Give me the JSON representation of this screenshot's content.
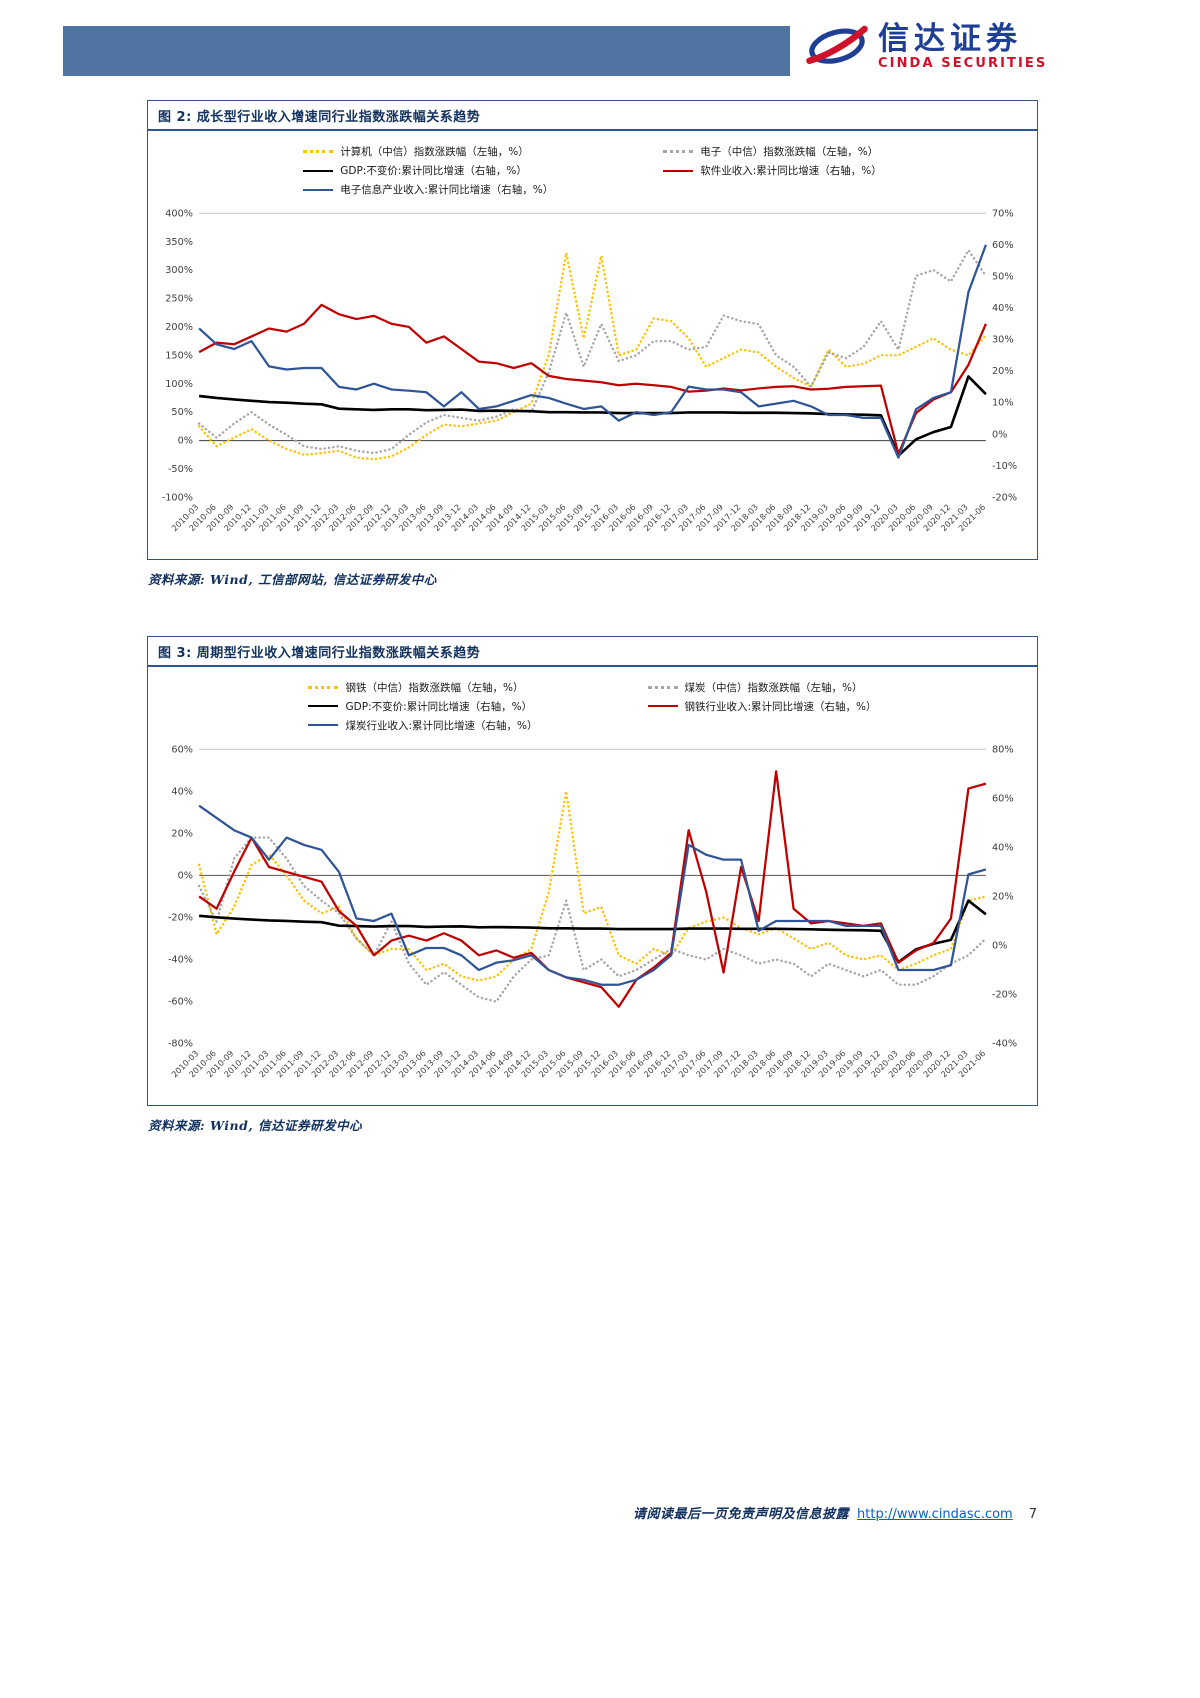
{
  "page": {
    "header": {
      "brand_cn": "信达证券",
      "brand_en": "CINDA SECURITIES"
    },
    "footer": {
      "disclaimer": "请阅读最后一页免责声明及信息披露",
      "url": "http://www.cindasc.com",
      "page_number": "7"
    },
    "colors": {
      "header_band": "#4f74a1",
      "title_navy": "#12315e",
      "box_border": "#2f5496",
      "logo_blue": "#1e3f94",
      "logo_red": "#d0112b",
      "link_blue": "#0563c1"
    }
  },
  "figure2": {
    "title": "图 2: 成长型行业收入增速同行业指数涨跌幅关系趋势",
    "source": "资料来源: Wind, 工信部网站, 信达证券研发中心"
  },
  "figure3": {
    "title": "图 3: 周期型行业收入增速同行业指数涨跌幅关系趋势",
    "source": "资料来源: Wind, 信达证券研发中心"
  },
  "chart_data": [
    {
      "type": "line",
      "title": "图 2: 成长型行业收入增速同行业指数涨跌幅关系趋势",
      "legend_position": "top",
      "grid": "top-and-zero-line-only",
      "left_axis": {
        "min": -100,
        "max": 400,
        "step": 50,
        "unit": "%"
      },
      "right_axis": {
        "min": -20,
        "max": 70,
        "step": 10,
        "unit": "%"
      },
      "categories": [
        "2010-03",
        "2010-06",
        "2010-09",
        "2010-12",
        "2011-03",
        "2011-06",
        "2011-09",
        "2011-12",
        "2012-03",
        "2012-06",
        "2012-09",
        "2012-12",
        "2013-03",
        "2013-06",
        "2013-09",
        "2013-12",
        "2014-03",
        "2014-06",
        "2014-09",
        "2014-12",
        "2015-03",
        "2015-06",
        "2015-09",
        "2015-12",
        "2016-03",
        "2016-06",
        "2016-09",
        "2016-12",
        "2017-03",
        "2017-06",
        "2017-09",
        "2017-12",
        "2018-03",
        "2018-06",
        "2018-09",
        "2018-12",
        "2019-03",
        "2019-06",
        "2019-09",
        "2019-12",
        "2020-03",
        "2020-06",
        "2020-09",
        "2020-12",
        "2021-03",
        "2021-06"
      ],
      "series": [
        {
          "name": "计算机（中信）指数涨跌幅（左轴，%）",
          "axis": "left",
          "color": "#FFC000",
          "style": "dotted",
          "values": [
            25,
            -10,
            5,
            20,
            0,
            -15,
            -25,
            -22,
            -18,
            -30,
            -33,
            -28,
            -12,
            10,
            28,
            25,
            30,
            35,
            50,
            65,
            150,
            330,
            180,
            325,
            150,
            160,
            215,
            210,
            180,
            130,
            145,
            160,
            155,
            130,
            110,
            95,
            160,
            130,
            135,
            150,
            150,
            165,
            180,
            160,
            150,
            185
          ]
        },
        {
          "name": "电子（中信）指数涨跌幅（左轴，%）",
          "axis": "left",
          "color": "#A6A6A6",
          "style": "dotted",
          "values": [
            30,
            5,
            30,
            50,
            28,
            10,
            -10,
            -15,
            -10,
            -18,
            -22,
            -15,
            10,
            32,
            45,
            40,
            35,
            42,
            55,
            50,
            120,
            225,
            130,
            205,
            140,
            150,
            175,
            175,
            160,
            165,
            220,
            210,
            205,
            150,
            130,
            95,
            155,
            145,
            165,
            210,
            160,
            290,
            300,
            280,
            335,
            290
          ]
        },
        {
          "name": "GDP:不变价:累计同比增速（右轴，%）",
          "axis": "right",
          "color": "#000000",
          "style": "solid",
          "width": 2.6,
          "values": [
            12.1,
            11.5,
            11,
            10.6,
            10.2,
            10,
            9.7,
            9.5,
            8.1,
            7.9,
            7.7,
            7.9,
            7.9,
            7.6,
            7.7,
            7.8,
            7.4,
            7.5,
            7.4,
            7.3,
            7,
            7,
            6.9,
            6.9,
            6.7,
            6.7,
            6.7,
            6.7,
            6.9,
            6.9,
            6.9,
            6.8,
            6.8,
            6.8,
            6.7,
            6.6,
            6.4,
            6.3,
            6.2,
            6,
            -6.8,
            -1.6,
            0.7,
            2.3,
            18.3,
            12.7
          ]
        },
        {
          "name": "软件业收入:累计同比增速（右轴，%）",
          "axis": "right",
          "color": "#C00000",
          "style": "solid",
          "values": [
            26,
            29,
            28.5,
            31,
            33.5,
            32.5,
            35,
            41,
            38,
            36.5,
            37.5,
            35,
            34,
            29,
            31,
            27,
            23,
            22.5,
            21,
            22.5,
            18.5,
            17.5,
            17,
            16.5,
            15.5,
            16,
            15.5,
            15,
            13.5,
            13.8,
            14.5,
            13.9,
            14.5,
            15,
            15.2,
            14.2,
            14.4,
            15,
            15.2,
            15.4,
            -6.2,
            6.7,
            11,
            13.3,
            22,
            35
          ]
        },
        {
          "name": "电子信息产业收入:累计同比增速（右轴，%）",
          "axis": "right",
          "color": "#2F5597",
          "style": "solid",
          "values": [
            33.5,
            28.5,
            27,
            29.5,
            21.5,
            20.5,
            21,
            21,
            15,
            14.2,
            16,
            14.2,
            13.8,
            13.3,
            8.8,
            13.3,
            8,
            8.8,
            10.6,
            12.4,
            11.5,
            9.7,
            8,
            8.8,
            4.3,
            7,
            6.1,
            7,
            15.1,
            14.2,
            14.2,
            13.3,
            8.8,
            9.7,
            10.6,
            8.8,
            6.1,
            6.1,
            5.2,
            5.2,
            -7.4,
            7.9,
            11.5,
            13.3,
            45,
            60
          ]
        }
      ]
    },
    {
      "type": "line",
      "title": "图 3: 周期型行业收入增速同行业指数涨跌幅关系趋势",
      "legend_position": "top",
      "grid": "top-and-zero-line-only",
      "left_axis": {
        "min": -80,
        "max": 60,
        "step": 20,
        "unit": "%"
      },
      "right_axis": {
        "min": -40,
        "max": 80,
        "step": 20,
        "unit": "%"
      },
      "categories": [
        "2010-03",
        "2010-06",
        "2010-09",
        "2010-12",
        "2011-03",
        "2011-06",
        "2011-09",
        "2011-12",
        "2012-03",
        "2012-06",
        "2012-09",
        "2012-12",
        "2013-03",
        "2013-06",
        "2013-09",
        "2013-12",
        "2014-03",
        "2014-06",
        "2014-09",
        "2014-12",
        "2015-03",
        "2015-06",
        "2015-09",
        "2015-12",
        "2016-03",
        "2016-06",
        "2016-09",
        "2016-12",
        "2017-03",
        "2017-06",
        "2017-09",
        "2017-12",
        "2018-03",
        "2018-06",
        "2018-09",
        "2018-12",
        "2019-03",
        "2019-06",
        "2019-09",
        "2019-12",
        "2020-03",
        "2020-06",
        "2020-09",
        "2020-12",
        "2021-03",
        "2021-06"
      ],
      "series": [
        {
          "name": "钢铁（中信）指数涨跌幅（左轴，%）",
          "axis": "left",
          "color": "#FFC000",
          "style": "dotted",
          "values": [
            5,
            -28,
            -15,
            5,
            10,
            0,
            -12,
            -18,
            -15,
            -30,
            -38,
            -35,
            -35,
            -45,
            -42,
            -48,
            -50,
            -48,
            -40,
            -35,
            -8,
            40,
            -18,
            -15,
            -38,
            -42,
            -35,
            -38,
            -25,
            -22,
            -20,
            -25,
            -28,
            -25,
            -30,
            -35,
            -32,
            -38,
            -40,
            -38,
            -45,
            -42,
            -38,
            -35,
            -12,
            -10
          ]
        },
        {
          "name": "煤炭（中信）指数涨跌幅（左轴，%）",
          "axis": "left",
          "color": "#A6A6A6",
          "style": "dotted",
          "values": [
            -5,
            -22,
            8,
            18,
            18,
            8,
            -5,
            -12,
            -18,
            -30,
            -38,
            -22,
            -42,
            -52,
            -46,
            -52,
            -58,
            -60,
            -48,
            -40,
            -38,
            -12,
            -45,
            -40,
            -48,
            -45,
            -40,
            -35,
            -38,
            -40,
            -35,
            -38,
            -42,
            -40,
            -42,
            -48,
            -42,
            -45,
            -48,
            -45,
            -52,
            -52,
            -48,
            -42,
            -38,
            -30
          ]
        },
        {
          "name": "GDP:不变价:累计同比增速（右轴，%）",
          "axis": "right",
          "color": "#000000",
          "style": "solid",
          "width": 2.6,
          "values": [
            12.1,
            11.5,
            11,
            10.6,
            10.2,
            10,
            9.7,
            9.5,
            8.1,
            7.9,
            7.7,
            7.9,
            7.9,
            7.6,
            7.7,
            7.8,
            7.4,
            7.5,
            7.4,
            7.3,
            7,
            7,
            6.9,
            6.9,
            6.7,
            6.7,
            6.7,
            6.7,
            6.9,
            6.9,
            6.9,
            6.8,
            6.8,
            6.8,
            6.7,
            6.6,
            6.4,
            6.3,
            6.2,
            6,
            -6.8,
            -1.6,
            0.7,
            2.3,
            18.3,
            12.7
          ]
        },
        {
          "name": "钢铁行业收入:累计同比增速（右轴，%）",
          "axis": "right",
          "color": "#C00000",
          "style": "solid",
          "values": [
            20,
            15,
            30,
            44,
            32,
            30,
            28,
            26,
            14,
            8,
            -4,
            2,
            4,
            2,
            5,
            2,
            -4,
            -2,
            -5,
            -3,
            -10,
            -13,
            -15,
            -17,
            -25,
            -14,
            -9,
            -3,
            47,
            22,
            -11,
            32,
            10,
            71,
            15,
            9,
            10,
            9,
            8,
            9,
            -7,
            -2,
            1,
            11,
            64,
            66
          ]
        },
        {
          "name": "煤炭行业收入:累计同比增速（右轴，%）",
          "axis": "right",
          "color": "#2F5597",
          "style": "solid",
          "values": [
            57,
            52,
            47,
            44,
            35,
            44,
            41,
            39,
            30,
            11,
            10,
            13,
            -4,
            -1,
            -1,
            -4,
            -10,
            -7,
            -6,
            -4,
            -10,
            -13,
            -14,
            -16,
            -16,
            -14,
            -10,
            -4,
            41,
            37,
            35,
            35,
            6,
            10,
            10,
            10,
            10,
            8,
            8,
            8,
            -10,
            -10,
            -10,
            -8,
            29,
            31
          ]
        }
      ]
    }
  ]
}
